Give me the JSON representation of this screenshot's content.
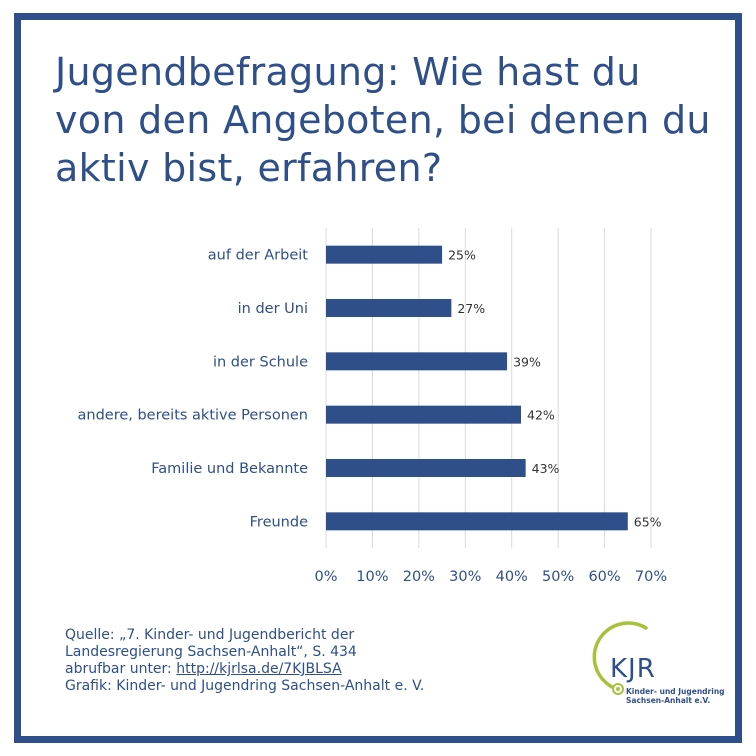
{
  "title": "Jugendbefragung: Wie hast du von den Angeboten, bei denen du aktiv bist, erfahren?",
  "chart_data": {
    "type": "bar",
    "orientation": "horizontal",
    "categories": [
      "auf der Arbeit",
      "in der Uni",
      "in der Schule",
      "andere, bereits aktive Personen",
      "Familie und Bekannte",
      "Freunde"
    ],
    "values": [
      25,
      27,
      39,
      42,
      43,
      65
    ],
    "value_labels": [
      "25%",
      "27%",
      "39%",
      "42%",
      "43%",
      "65%"
    ],
    "xlim": [
      0,
      70
    ],
    "xticks": [
      "0%",
      "10%",
      "20%",
      "30%",
      "40%",
      "50%",
      "60%",
      "70%"
    ],
    "grid": "vertical",
    "bar_color": "#2f4f8a"
  },
  "source": {
    "line1": "Quelle: „7. Kinder- und Jugendbericht der",
    "line2": "Landesregierung Sachsen-Anhalt“, S. 434",
    "line3_prefix": "abrufbar unter: ",
    "link": "http://kjrlsa.de/7KJBLSA",
    "line4": "Grafik: Kinder- und Jugendring Sachsen-Anhalt e. V."
  },
  "logo": {
    "text": "KJR",
    "caption1": "Kinder- und Jugendring",
    "caption2": "Sachsen-Anhalt e.V.",
    "ring_color": "#a6c23a",
    "brand_color": "#2f4f8a"
  }
}
